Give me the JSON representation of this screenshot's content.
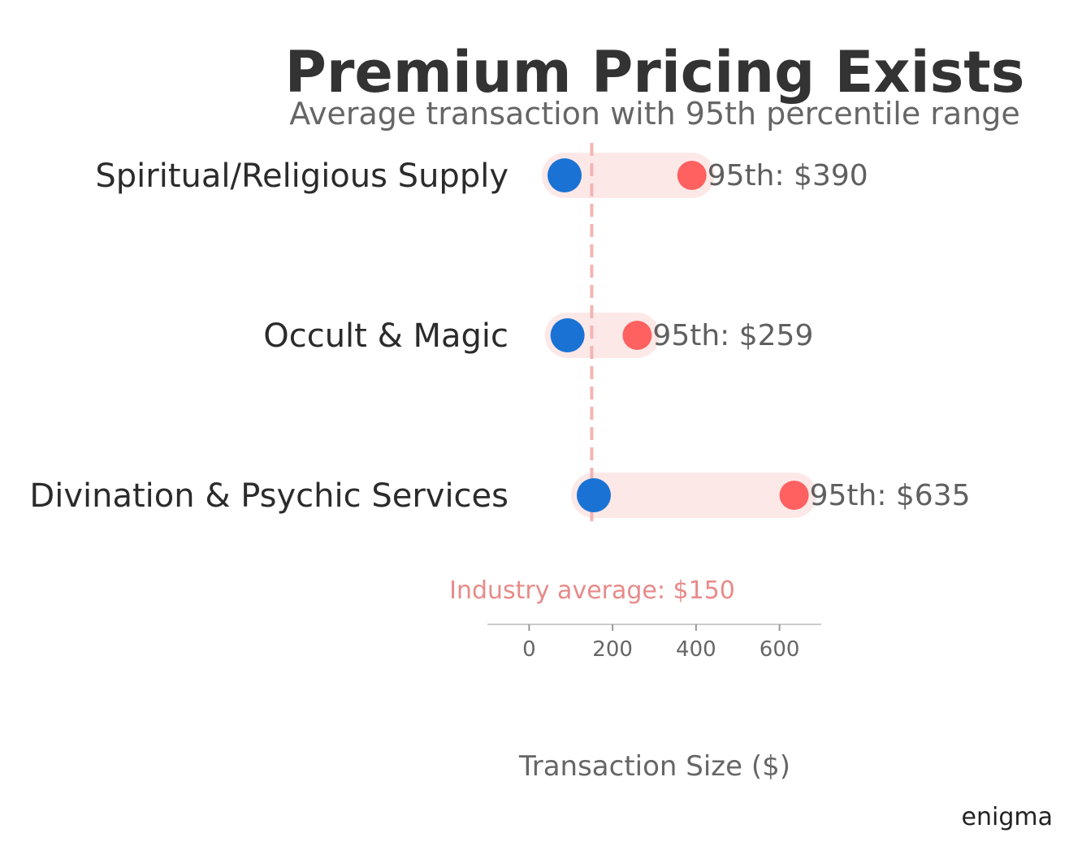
{
  "chart_data": {
    "type": "dumbbell",
    "title": "Premium Pricing Exists",
    "subtitle": "Average transaction with 95th percentile range",
    "xlabel": "Transaction Size ($)",
    "xlim": [
      -100,
      700
    ],
    "xticks": [
      0,
      200,
      400,
      600
    ],
    "grid": false,
    "categories": [
      "Spiritual/Religious Supply",
      "Occult & Magic",
      "Divination & Psychic Services"
    ],
    "series": [
      {
        "values": [
          85,
          92,
          155
        ],
        "color": "#1a73d4"
      },
      {
        "values": [
          390,
          259,
          635
        ],
        "color": "#ff6161"
      }
    ],
    "point_labels": [
      "95th: $390",
      "95th: $259",
      "95th: $635"
    ],
    "range_color": "#fde8e8",
    "reference_line": {
      "value": 150,
      "label": "Industry average: $150",
      "color": "#f4b4b4"
    }
  },
  "brand": "enigma"
}
